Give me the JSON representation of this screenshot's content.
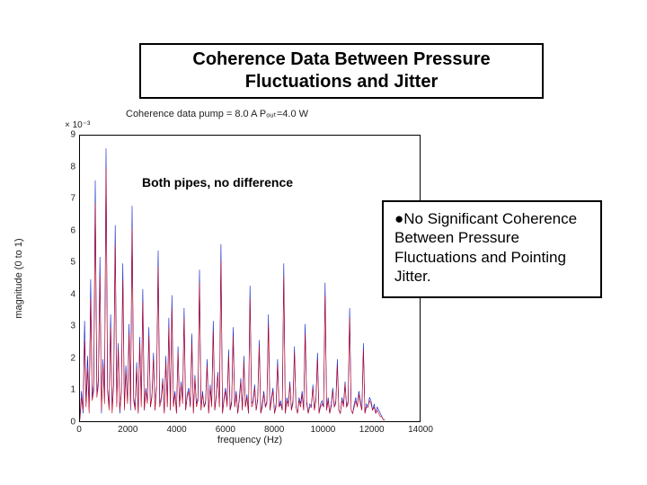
{
  "title": "Coherence Data Between Pressure Fluctuations and Jitter",
  "annotation": "Both pipes, no difference",
  "note": "No Significant Coherence Between Pressure Fluctuations and Pointing Jitter.",
  "chart": {
    "type": "line",
    "subtitle": "Coherence data    pump = 8.0 A   Pₒᵤₜ=4.0 W",
    "y_exponent_label": "× 10⁻³",
    "xlabel": "frequency (Hz)",
    "ylabel": "magnitude (0 to 1)",
    "xlim": [
      0,
      14000
    ],
    "ylim": [
      0,
      9
    ],
    "xtick_step": 2000,
    "ytick_step": 1,
    "xticks": [
      0,
      2000,
      4000,
      6000,
      8000,
      10000,
      12000,
      14000
    ],
    "yticks": [
      0,
      1,
      2,
      3,
      4,
      5,
      6,
      7,
      8,
      9
    ],
    "line_color": "#0018c8",
    "line_width": 0.6,
    "background_color": "#ffffff",
    "border_color": "#000000",
    "series": [
      {
        "name": "blue",
        "color": "#0018c8",
        "y": [
          0.2,
          1.0,
          0.3,
          3.2,
          0.6,
          2.1,
          0.4,
          4.5,
          0.8,
          1.2,
          7.6,
          0.9,
          1.4,
          5.2,
          0.3,
          2.0,
          0.7,
          8.6,
          1.1,
          0.5,
          3.4,
          0.4,
          1.3,
          6.2,
          0.6,
          2.5,
          0.3,
          1.0,
          5.0,
          0.5,
          1.8,
          0.7,
          3.1,
          0.4,
          6.8,
          0.8,
          0.5,
          1.9,
          0.3,
          2.7,
          0.6,
          4.2,
          0.4,
          1.1,
          0.7,
          3.0,
          0.5,
          0.9,
          2.2,
          0.4,
          1.2,
          5.4,
          0.6,
          0.8,
          1.4,
          0.3,
          2.1,
          0.5,
          3.3,
          0.4,
          4.0,
          0.6,
          1.0,
          0.3,
          2.4,
          0.5,
          1.3,
          0.7,
          3.6,
          0.4,
          0.9,
          1.1,
          0.5,
          2.8,
          0.3,
          1.5,
          0.6,
          0.8,
          4.8,
          0.4,
          1.0,
          0.5,
          0.7,
          2.0,
          0.3,
          1.2,
          0.6,
          3.2,
          0.4,
          0.9,
          1.6,
          0.5,
          5.6,
          0.3,
          0.8,
          1.1,
          0.6,
          2.3,
          0.4,
          0.7,
          3.0,
          0.5,
          1.0,
          0.3,
          0.8,
          1.4,
          0.4,
          2.1,
          0.5,
          0.9,
          0.3,
          4.3,
          0.6,
          0.7,
          1.2,
          0.4,
          0.8,
          2.6,
          0.3,
          0.6,
          1.0,
          0.5,
          0.7,
          3.4,
          0.4,
          0.8,
          1.1,
          0.3,
          0.6,
          2.0,
          0.5,
          0.7,
          0.4,
          5.0,
          0.3,
          0.8,
          0.6,
          1.3,
          0.4,
          0.7,
          2.4,
          0.5,
          0.3,
          0.8,
          0.6,
          1.0,
          0.4,
          3.1,
          0.7,
          0.3,
          0.6,
          0.5,
          1.2,
          0.4,
          0.8,
          2.2,
          0.3,
          0.6,
          0.7,
          0.5,
          4.4,
          0.4,
          0.8,
          0.3,
          0.6,
          1.1,
          0.5,
          0.7,
          2.0,
          0.4,
          0.3,
          0.8,
          0.6,
          1.3,
          0.5,
          0.7,
          3.6,
          0.4,
          0.3,
          0.6,
          0.8,
          0.5,
          1.0,
          0.7,
          0.4,
          2.5,
          0.3,
          0.6,
          0.5,
          0.8,
          0.7,
          0.4,
          0.6,
          0.3,
          0.5,
          0.4,
          0.3,
          0.2,
          0.1,
          0.1
        ]
      },
      {
        "name": "red",
        "color": "#c80018",
        "y": [
          0.1,
          0.8,
          0.4,
          2.6,
          0.5,
          1.7,
          0.3,
          3.9,
          0.7,
          1.0,
          6.9,
          0.8,
          1.2,
          4.6,
          0.4,
          1.8,
          0.6,
          8.0,
          1.0,
          0.4,
          3.0,
          0.3,
          1.2,
          5.6,
          0.5,
          2.3,
          0.4,
          0.9,
          4.5,
          0.4,
          1.6,
          0.6,
          2.8,
          0.5,
          6.1,
          0.7,
          0.4,
          1.7,
          0.3,
          2.5,
          0.5,
          3.8,
          0.4,
          1.0,
          0.6,
          2.7,
          0.5,
          0.8,
          2.0,
          0.4,
          1.1,
          4.9,
          0.5,
          0.7,
          1.3,
          0.3,
          1.9,
          0.5,
          3.0,
          0.4,
          3.6,
          0.5,
          0.9,
          0.3,
          2.2,
          0.5,
          1.2,
          0.6,
          3.3,
          0.4,
          0.8,
          1.0,
          0.5,
          2.5,
          0.3,
          1.4,
          0.5,
          0.7,
          4.4,
          0.4,
          0.9,
          0.5,
          0.6,
          1.8,
          0.3,
          1.1,
          0.5,
          2.9,
          0.4,
          0.8,
          1.5,
          0.5,
          5.1,
          0.3,
          0.7,
          1.0,
          0.5,
          2.1,
          0.4,
          0.6,
          2.7,
          0.5,
          0.9,
          0.3,
          0.7,
          1.3,
          0.4,
          1.9,
          0.5,
          0.8,
          0.3,
          3.9,
          0.5,
          0.6,
          1.1,
          0.4,
          0.7,
          2.4,
          0.3,
          0.5,
          0.9,
          0.5,
          0.6,
          3.1,
          0.4,
          0.7,
          1.0,
          0.3,
          0.5,
          1.8,
          0.5,
          0.6,
          0.4,
          4.6,
          0.3,
          0.7,
          0.5,
          1.2,
          0.4,
          0.6,
          2.2,
          0.5,
          0.3,
          0.7,
          0.5,
          0.9,
          0.4,
          2.8,
          0.6,
          0.3,
          0.5,
          0.5,
          1.1,
          0.4,
          0.7,
          2.0,
          0.3,
          0.5,
          0.6,
          0.5,
          4.0,
          0.4,
          0.7,
          0.3,
          0.5,
          1.0,
          0.5,
          0.6,
          1.8,
          0.4,
          0.3,
          0.7,
          0.5,
          1.2,
          0.5,
          0.6,
          3.3,
          0.4,
          0.3,
          0.5,
          0.7,
          0.5,
          0.9,
          0.6,
          0.4,
          2.3,
          0.3,
          0.5,
          0.5,
          0.7,
          0.6,
          0.4,
          0.5,
          0.3,
          0.4,
          0.3,
          0.2,
          0.2,
          0.1,
          0.1
        ]
      }
    ]
  }
}
